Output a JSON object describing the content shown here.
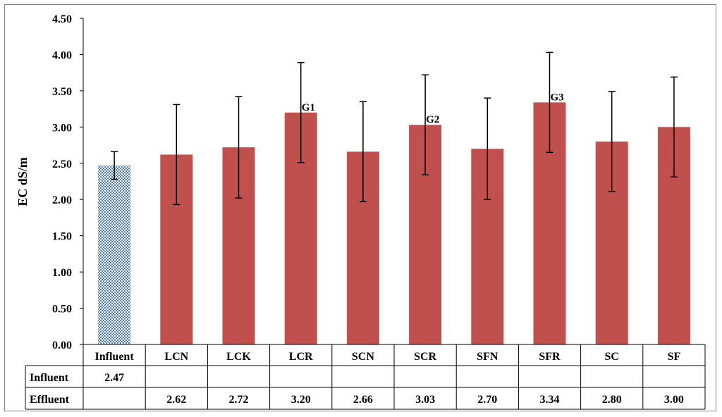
{
  "chart_data": {
    "type": "bar",
    "title": "",
    "ylabel": "EC  dS/m",
    "xlabel": "",
    "ylim": [
      0,
      4.5
    ],
    "y_ticks": [
      "0.00",
      "0.50",
      "1.00",
      "1.50",
      "2.00",
      "2.50",
      "3.00",
      "3.50",
      "4.00",
      "4.50"
    ],
    "y_tick_values": [
      0,
      0.5,
      1.0,
      1.5,
      2.0,
      2.5,
      3.0,
      3.5,
      4.0,
      4.5
    ],
    "categories": [
      "Influent",
      "LCN",
      "LCK",
      "LCR",
      "SCN",
      "SCR",
      "SFN",
      "SFR",
      "SC",
      "SF"
    ],
    "series": [
      {
        "name": "Influent",
        "color": "#4f81bd",
        "pattern": "checkerboard",
        "values": [
          2.47,
          null,
          null,
          null,
          null,
          null,
          null,
          null,
          null,
          null
        ],
        "value_labels": [
          "2.47",
          "",
          "",
          "",
          "",
          "",
          "",
          "",
          "",
          ""
        ],
        "error": [
          0.19,
          null,
          null,
          null,
          null,
          null,
          null,
          null,
          null,
          null
        ]
      },
      {
        "name": "Effluent",
        "color": "#c0504d",
        "values": [
          null,
          2.62,
          2.72,
          3.2,
          2.66,
          3.03,
          2.7,
          3.34,
          2.8,
          3.0
        ],
        "value_labels": [
          "",
          "2.62",
          "2.72",
          "3.20",
          "2.66",
          "3.03",
          "2.70",
          "3.34",
          "2.80",
          "3.00"
        ],
        "error": [
          null,
          0.69,
          0.7,
          0.69,
          0.69,
          0.69,
          0.7,
          0.69,
          0.69,
          0.69
        ]
      }
    ],
    "annotations": [
      {
        "category": "LCR",
        "text": "G1"
      },
      {
        "category": "SCR",
        "text": "G2"
      },
      {
        "category": "SFR",
        "text": "G3"
      }
    ],
    "grid": false,
    "legend": "data-table"
  }
}
